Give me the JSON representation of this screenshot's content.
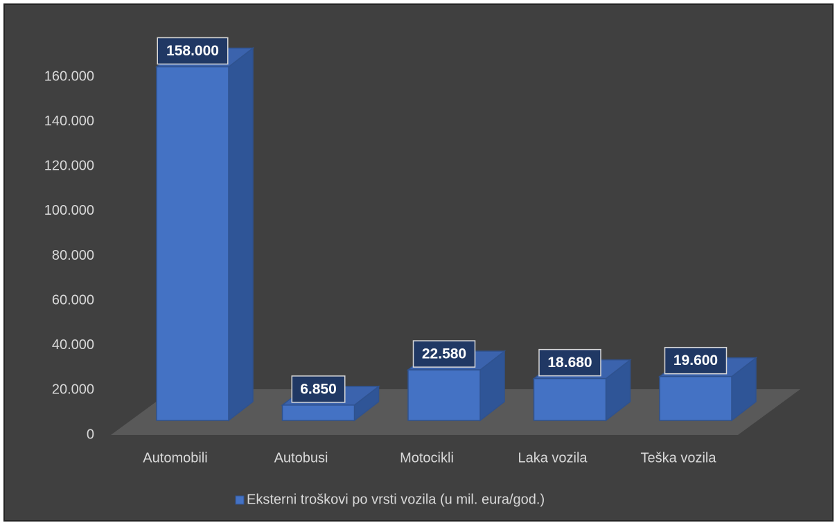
{
  "chart_data": {
    "type": "bar3d",
    "categories": [
      "Automobili",
      "Autobusi",
      "Motocikli",
      "Laka vozila",
      "Teška vozila"
    ],
    "series": [
      {
        "name": "Eksterni troškovi po vrsti vozila (u mil. eura/god.)",
        "color": "#4472c4",
        "values": [
          158000,
          6850,
          22580,
          18680,
          19600
        ],
        "value_labels": [
          "158.000",
          "6.850",
          "22.580",
          "18.680",
          "19.600"
        ]
      }
    ],
    "ylim": [
      0,
      160000
    ],
    "yticks": [
      0,
      {
        "value": 20000,
        "label": "20.000"
      },
      {
        "value": 40000,
        "label": "40.000"
      },
      {
        "value": 60000,
        "label": "60.000"
      },
      {
        "value": 80000,
        "label": "80.000"
      },
      {
        "value": 100000,
        "label": "100.000"
      },
      {
        "value": 120000,
        "label": "120.000"
      },
      {
        "value": 140000,
        "label": "140.000"
      },
      {
        "value": 160000,
        "label": "160.000"
      }
    ],
    "grid": false,
    "legend": "bottom"
  }
}
